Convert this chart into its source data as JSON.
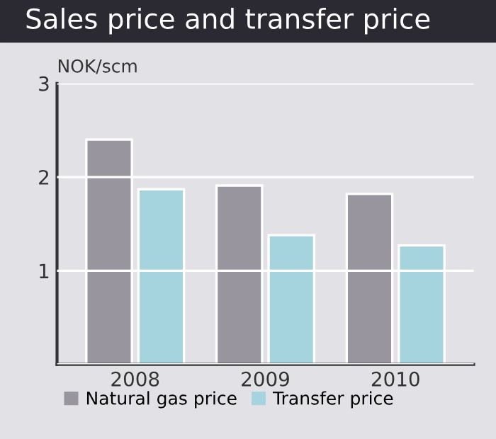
{
  "chart_data": {
    "type": "bar",
    "title": "Sales price and transfer price",
    "ylabel": "NOK/scm",
    "categories": [
      "2008",
      "2009",
      "2010"
    ],
    "series": [
      {
        "name": "Natural gas price",
        "color": "#99959e",
        "values": [
          2.4,
          1.91,
          1.82
        ]
      },
      {
        "name": "Transfer price",
        "color": "#a6d4de",
        "values": [
          1.87,
          1.38,
          1.27
        ]
      }
    ],
    "ylim": [
      0,
      3
    ],
    "yticks": [
      {
        "value": 0,
        "label": null
      },
      1,
      2,
      3
    ],
    "grid": "y",
    "legend": "bottom"
  }
}
